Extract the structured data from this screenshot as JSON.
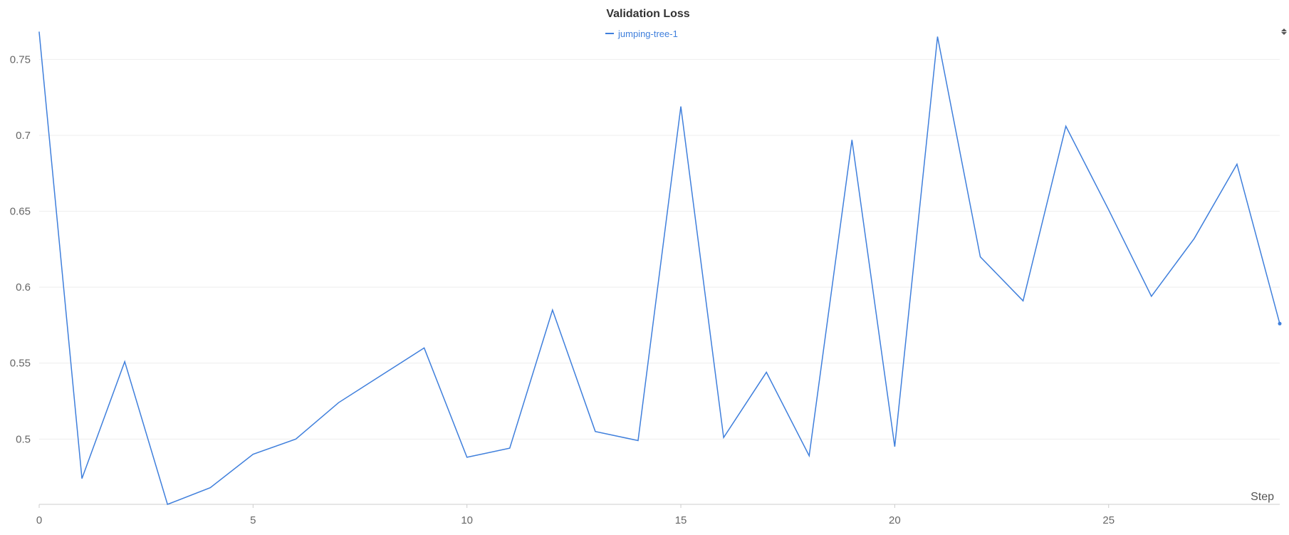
{
  "chart_data": {
    "type": "line",
    "title": "Validation Loss",
    "xlabel": "Step",
    "ylabel": "",
    "xlim": [
      0,
      29
    ],
    "ylim": [
      0.457,
      0.768
    ],
    "x_ticks": [
      0,
      5,
      10,
      15,
      20,
      25
    ],
    "y_ticks": [
      0.5,
      0.55,
      0.6,
      0.65,
      0.7,
      0.75
    ],
    "x_tick_labels": [
      "0",
      "5",
      "10",
      "15",
      "20",
      "25"
    ],
    "y_tick_labels": [
      "0.5",
      "0.55",
      "0.6",
      "0.65",
      "0.7",
      "0.75"
    ],
    "grid": true,
    "legend_position": "top-center",
    "series": [
      {
        "name": "jumping-tree-1",
        "color": "#3f7fdc",
        "x": [
          0,
          1,
          2,
          3,
          4,
          5,
          6,
          7,
          8,
          9,
          10,
          11,
          12,
          13,
          14,
          15,
          16,
          17,
          18,
          19,
          20,
          21,
          22,
          23,
          24,
          25,
          26,
          27,
          28,
          29
        ],
        "y": [
          0.768,
          0.474,
          0.551,
          0.457,
          0.468,
          0.49,
          0.5,
          0.524,
          0.542,
          0.56,
          0.488,
          0.494,
          0.585,
          0.505,
          0.499,
          0.719,
          0.501,
          0.544,
          0.489,
          0.697,
          0.495,
          0.765,
          0.62,
          0.591,
          0.706,
          0.651,
          0.594,
          0.632,
          0.681,
          0.576
        ]
      }
    ]
  }
}
